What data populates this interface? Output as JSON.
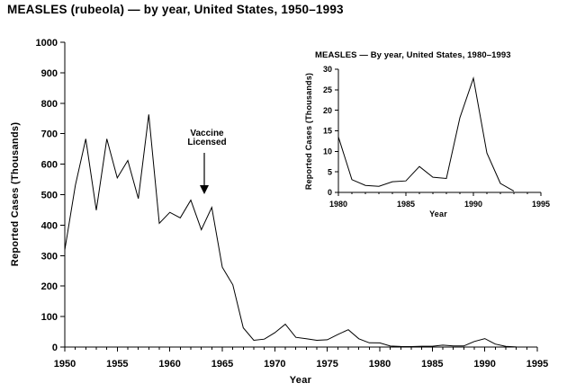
{
  "page": {
    "title": "MEASLES (rubeola) — by year, United States, 1950–1993"
  },
  "colors": {
    "line": "#000000",
    "background": "#ffffff",
    "text": "#000000"
  },
  "chart_data": [
    {
      "type": "line",
      "name": "main",
      "title": "MEASLES (rubeola) — by year, United States, 1950–1993",
      "xlabel": "Year",
      "ylabel": "Reported Cases (Thousands)",
      "xlim": [
        1950,
        1995
      ],
      "ylim": [
        0,
        1000
      ],
      "x_ticks": [
        1950,
        1955,
        1960,
        1965,
        1970,
        1975,
        1980,
        1985,
        1990,
        1995
      ],
      "y_ticks": [
        0,
        100,
        200,
        300,
        400,
        500,
        600,
        700,
        800,
        900,
        1000
      ],
      "grid": false,
      "legend": false,
      "x": [
        1950,
        1951,
        1952,
        1953,
        1954,
        1955,
        1956,
        1957,
        1958,
        1959,
        1960,
        1961,
        1962,
        1963,
        1964,
        1965,
        1966,
        1967,
        1968,
        1969,
        1970,
        1971,
        1972,
        1973,
        1974,
        1975,
        1976,
        1977,
        1978,
        1979,
        1980,
        1981,
        1982,
        1983,
        1984,
        1985,
        1986,
        1987,
        1988,
        1989,
        1990,
        1991,
        1992,
        1993
      ],
      "values": [
        319,
        530,
        683,
        449,
        683,
        555,
        612,
        487,
        763,
        406,
        442,
        424,
        482,
        385,
        458,
        262,
        204,
        63,
        22,
        26,
        47,
        75,
        32,
        27,
        22,
        24,
        41,
        57,
        27,
        14,
        13.5,
        3.1,
        1.7,
        1.5,
        2.6,
        2.8,
        6.3,
        3.7,
        3.4,
        18.2,
        27.8,
        9.6,
        2.2,
        0.3
      ],
      "annotation": {
        "lines": [
          "Vaccine",
          "Licensed"
        ],
        "year": 1963
      }
    },
    {
      "type": "line",
      "name": "inset",
      "title": "MEASLES — By year, United States, 1980–1993",
      "xlabel": "Year",
      "ylabel": "Reported Cases (Thousands)",
      "xlim": [
        1980,
        1995
      ],
      "ylim": [
        0,
        30
      ],
      "x_ticks": [
        1980,
        1985,
        1990,
        1995
      ],
      "y_ticks": [
        0,
        5,
        10,
        15,
        20,
        25,
        30
      ],
      "grid": false,
      "legend": false,
      "x": [
        1980,
        1981,
        1982,
        1983,
        1984,
        1985,
        1986,
        1987,
        1988,
        1989,
        1990,
        1991,
        1992,
        1993
      ],
      "values": [
        13.5,
        3.1,
        1.7,
        1.5,
        2.6,
        2.8,
        6.3,
        3.7,
        3.4,
        18.2,
        27.8,
        9.6,
        2.2,
        0.3
      ]
    }
  ]
}
